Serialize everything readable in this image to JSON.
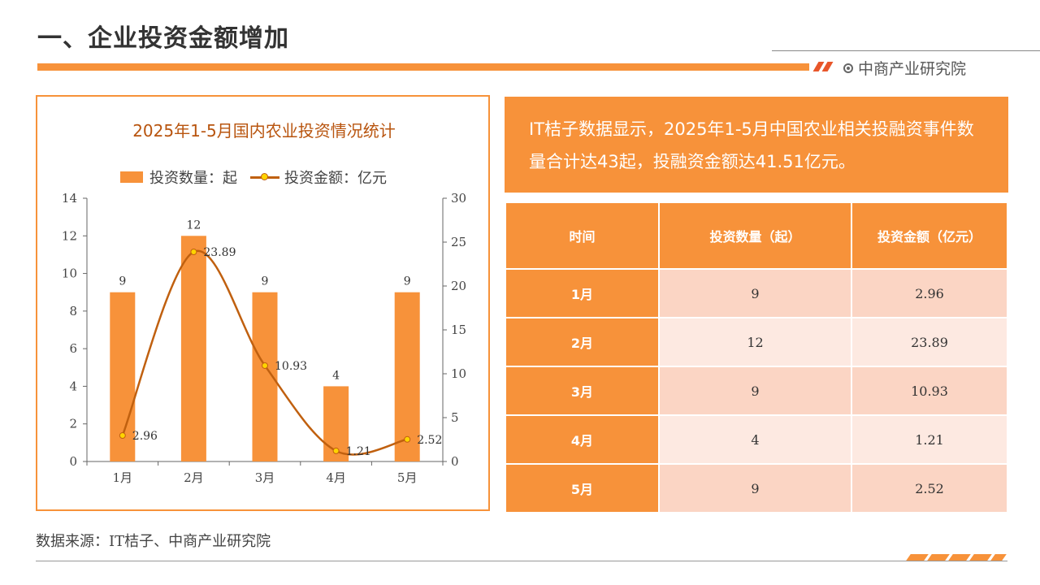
{
  "page": {
    "title": "一、企业投资金额增加",
    "brand": "中商产业研究院",
    "source": "数据来源：IT桔子、中商产业研究院"
  },
  "summary": {
    "text": "IT桔子数据显示，2025年1-5月中国农业相关投融资事件数量合计达43起，投融资金额达41.51亿元。"
  },
  "table": {
    "headers": [
      "时间",
      "投资数量（起）",
      "投资金额（亿元）"
    ],
    "rows": [
      [
        "1月",
        "9",
        "2.96"
      ],
      [
        "2月",
        "12",
        "23.89"
      ],
      [
        "3月",
        "9",
        "10.93"
      ],
      [
        "4月",
        "4",
        "1.21"
      ],
      [
        "5月",
        "9",
        "2.52"
      ]
    ]
  },
  "colors": {
    "accent": "#f7923a",
    "line": "#c0600f",
    "title": "#b8540e",
    "marker": "#ffd400"
  },
  "chart_data": {
    "type": "bar",
    "title": "2025年1-5月国内农业投资情况统计",
    "categories": [
      "1月",
      "2月",
      "3月",
      "4月",
      "5月"
    ],
    "series": [
      {
        "name": "投资数量：起",
        "type": "bar",
        "axis": "left",
        "values": [
          9,
          12,
          9,
          4,
          9
        ]
      },
      {
        "name": "投资金额：亿元",
        "type": "line",
        "axis": "right",
        "values": [
          2.96,
          23.89,
          10.93,
          1.21,
          2.52
        ]
      }
    ],
    "y_left": {
      "min": 0,
      "max": 14,
      "step": 2
    },
    "y_right": {
      "min": 0,
      "max": 30,
      "step": 5
    },
    "legend": "top",
    "grid": false
  }
}
